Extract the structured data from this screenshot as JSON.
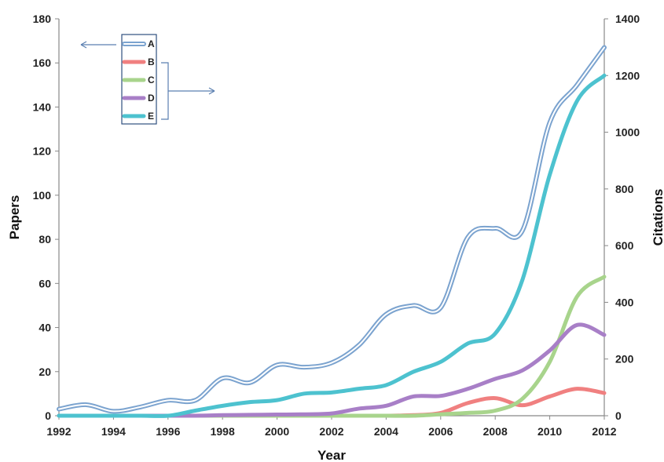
{
  "chart_data": {
    "type": "line",
    "xlabel": "Year",
    "ylabel_left": "Papers",
    "ylabel_right": "Citations",
    "xlim": [
      1992,
      2012
    ],
    "ylim_left": [
      0,
      180
    ],
    "ylim_right": [
      0,
      1400
    ],
    "x_ticks": [
      "1992",
      "1994",
      "1996",
      "1998",
      "2000",
      "2002",
      "2004",
      "2006",
      "2008",
      "2010",
      "2012"
    ],
    "y_left_ticks": [
      "0",
      "20",
      "40",
      "60",
      "80",
      "100",
      "120",
      "140",
      "160",
      "180"
    ],
    "y_right_ticks": [
      "0",
      "200",
      "400",
      "600",
      "800",
      "1000",
      "1200",
      "1400"
    ],
    "grid": false,
    "legend": "top-left",
    "x": [
      1992,
      1993,
      1994,
      1995,
      1996,
      1997,
      1998,
      1999,
      2000,
      2001,
      2002,
      2003,
      2004,
      2005,
      2006,
      2007,
      2008,
      2009,
      2010,
      2011,
      2012
    ],
    "series": [
      {
        "name": "A",
        "axis": "left",
        "color": "#7ba3cf",
        "style": "double",
        "values": [
          3,
          5,
          2,
          4,
          7,
          7,
          17,
          15,
          23,
          22,
          24,
          32,
          46,
          50,
          49,
          81,
          85,
          84,
          133,
          150,
          167
        ]
      },
      {
        "name": "B",
        "axis": "right",
        "color": "#f08080",
        "style": "solid",
        "values": [
          0,
          0,
          0,
          0,
          0,
          0,
          0,
          0,
          0,
          0,
          0,
          0,
          0,
          2,
          10,
          45,
          62,
          37,
          68,
          95,
          80
        ]
      },
      {
        "name": "C",
        "axis": "right",
        "color": "#a8d48c",
        "style": "solid",
        "values": [
          0,
          0,
          0,
          0,
          0,
          0,
          0,
          0,
          0,
          0,
          0,
          0,
          0,
          0,
          5,
          10,
          18,
          60,
          190,
          420,
          490
        ]
      },
      {
        "name": "D",
        "axis": "right",
        "color": "#a87fc7",
        "style": "solid",
        "values": [
          0,
          0,
          0,
          0,
          0,
          0,
          2,
          3,
          4,
          5,
          8,
          25,
          35,
          68,
          70,
          95,
          130,
          160,
          230,
          320,
          285
        ]
      },
      {
        "name": "E",
        "axis": "right",
        "color": "#4dc2cf",
        "style": "solid",
        "values": [
          0,
          0,
          0,
          0,
          0,
          18,
          35,
          48,
          55,
          78,
          82,
          95,
          108,
          155,
          190,
          255,
          290,
          480,
          850,
          1110,
          1200
        ]
      }
    ]
  }
}
